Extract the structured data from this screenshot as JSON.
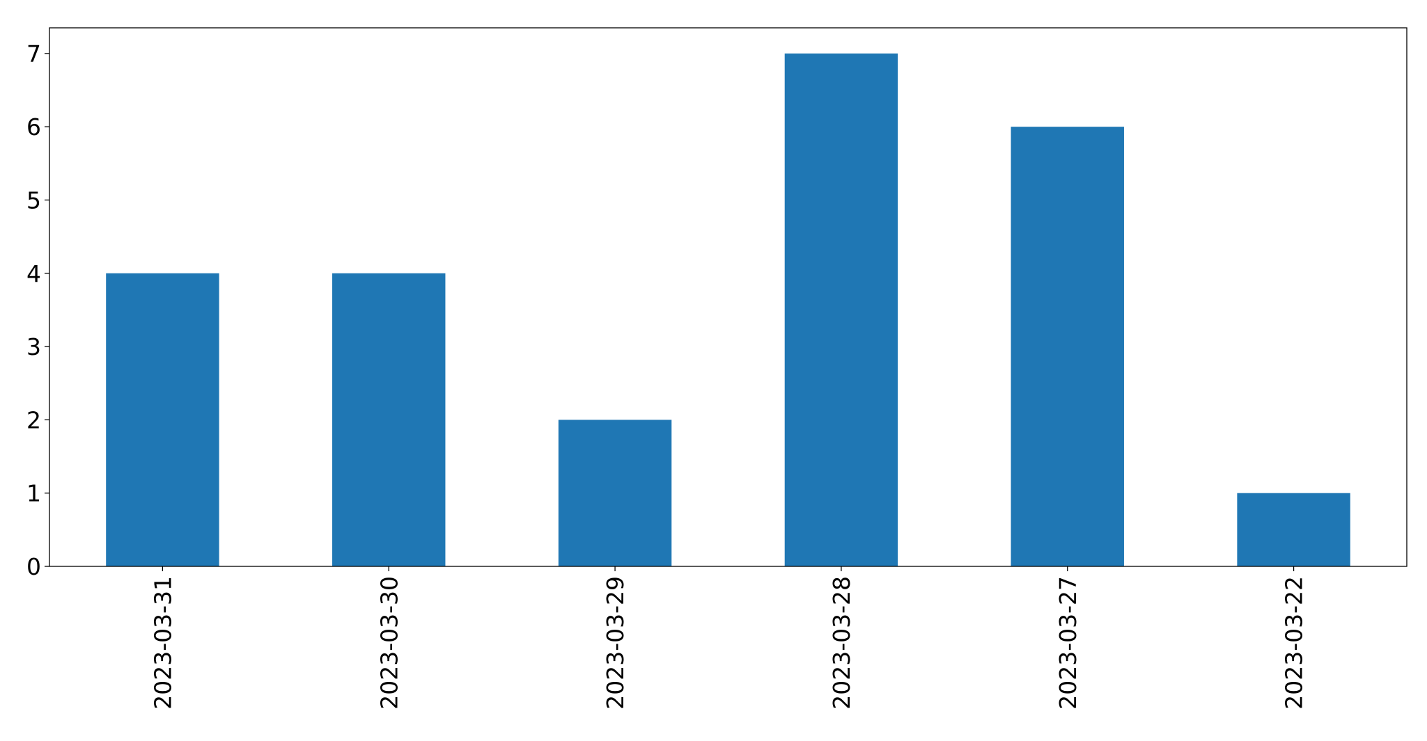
{
  "chart_data": {
    "type": "bar",
    "title": "",
    "xlabel": "",
    "ylabel": "",
    "categories": [
      "2023-03-31",
      "2023-03-30",
      "2023-03-29",
      "2023-03-28",
      "2023-03-27",
      "2023-03-22"
    ],
    "values": [
      4,
      4,
      2,
      7,
      6,
      1
    ],
    "ylim": [
      0,
      7.35
    ],
    "yticks": [
      0,
      1,
      2,
      3,
      4,
      5,
      6,
      7
    ],
    "grid": false,
    "legend": "none",
    "bar_color": "#1f77b4",
    "axis_color": "#000000"
  }
}
